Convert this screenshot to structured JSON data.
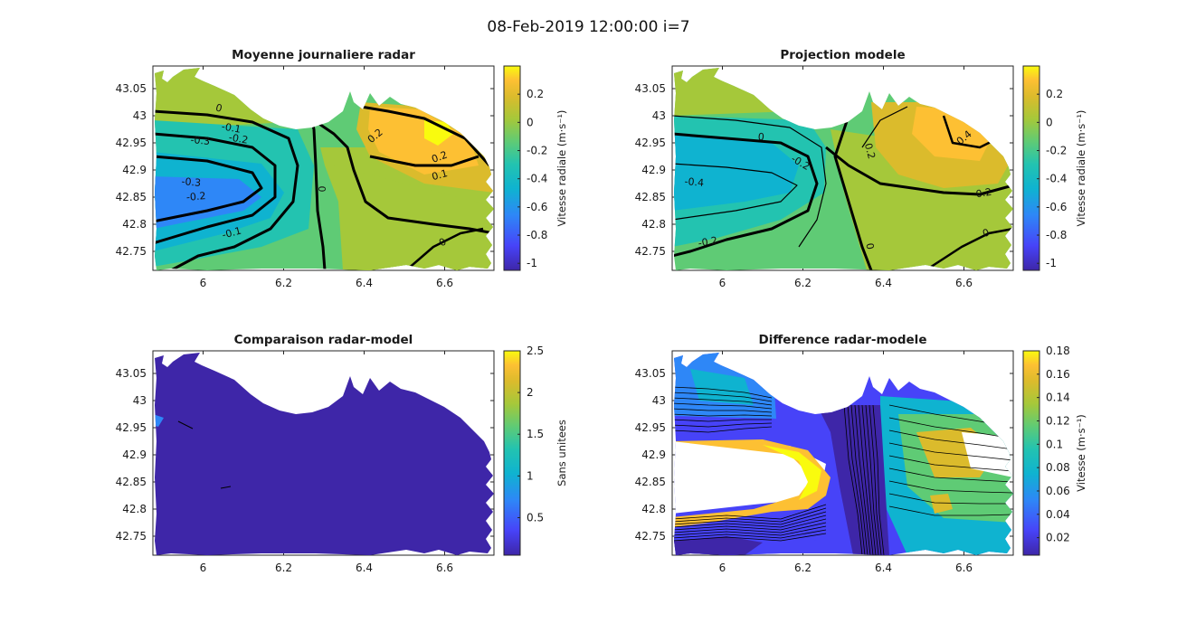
{
  "figure": {
    "suptitle": "08-Feb-2019 12:00:00 i=7"
  },
  "colormap": [
    "#3e26a8",
    "#4743f8",
    "#2e87f7",
    "#0fb3d0",
    "#23c3b0",
    "#5fcb75",
    "#a5c83a",
    "#dbbb2c",
    "#fdc033",
    "#f9fb0e"
  ],
  "chart_data": [
    {
      "type": "heatmap",
      "title": "Moyenne journaliere radar",
      "xlim": [
        5.88,
        6.72
      ],
      "ylim": [
        42.72,
        43.09
      ],
      "xticks": [
        "6",
        "6.2",
        "6.4",
        "6.6"
      ],
      "yticks": [
        "42.75",
        "42.8",
        "42.85",
        "42.9",
        "42.95",
        "43",
        "43.05"
      ],
      "colorbar": {
        "label": "Vitesse radiale (m·s⁻¹)",
        "range": [
          -1.05,
          0.4
        ],
        "ticks": [
          "0.2",
          "0",
          "-0.2",
          "-0.4",
          "-0.6",
          "-0.8",
          "-1"
        ]
      },
      "contour_labels": [
        "0",
        "-0.1",
        "-0.2",
        "-0.3",
        "-0.3",
        "-0.2",
        "-0.1",
        "0",
        "0.2",
        "0.2",
        "0.1",
        "0"
      ]
    },
    {
      "type": "heatmap",
      "title": "Projection modele",
      "xlim": [
        5.88,
        6.72
      ],
      "ylim": [
        42.72,
        43.09
      ],
      "xticks": [
        "6",
        "6.2",
        "6.4",
        "6.6"
      ],
      "yticks": [
        "42.75",
        "42.8",
        "42.85",
        "42.9",
        "42.95",
        "43",
        "43.05"
      ],
      "colorbar": {
        "label": "Vitesse radiale (m·s⁻¹)",
        "range": [
          -1.05,
          0.4
        ],
        "ticks": [
          "0.2",
          "0",
          "-0.2",
          "-0.4",
          "-0.6",
          "-0.8",
          "-1"
        ]
      },
      "contour_labels": [
        "0",
        "-0.2",
        "-0.4",
        "-0.2",
        "0",
        "0.2",
        "0",
        "0.2",
        "0.4"
      ]
    },
    {
      "type": "heatmap",
      "title": "Comparaison radar-model",
      "xlim": [
        5.88,
        6.72
      ],
      "ylim": [
        42.72,
        43.09
      ],
      "xticks": [
        "6",
        "6.2",
        "6.4",
        "6.6"
      ],
      "yticks": [
        "42.75",
        "42.8",
        "42.85",
        "42.9",
        "42.95",
        "43",
        "43.05"
      ],
      "colorbar": {
        "label": "Sans unitees",
        "range": [
          0.05,
          2.5
        ],
        "ticks": [
          "2.5",
          "2",
          "1.5",
          "1",
          "0.5"
        ]
      },
      "contour_labels": []
    },
    {
      "type": "heatmap",
      "title": "Difference radar-modele",
      "xlim": [
        5.88,
        6.72
      ],
      "ylim": [
        42.72,
        43.09
      ],
      "xticks": [
        "6",
        "6.2",
        "6.4",
        "6.6"
      ],
      "yticks": [
        "42.75",
        "42.8",
        "42.85",
        "42.9",
        "42.95",
        "43",
        "43.05"
      ],
      "colorbar": {
        "label": "Vitesse (m·s⁻¹)",
        "range": [
          0.005,
          0.18
        ],
        "ticks": [
          "0.18",
          "0.16",
          "0.14",
          "0.12",
          "0.1",
          "0.08",
          "0.06",
          "0.04",
          "0.02"
        ]
      },
      "contour_labels": []
    }
  ]
}
